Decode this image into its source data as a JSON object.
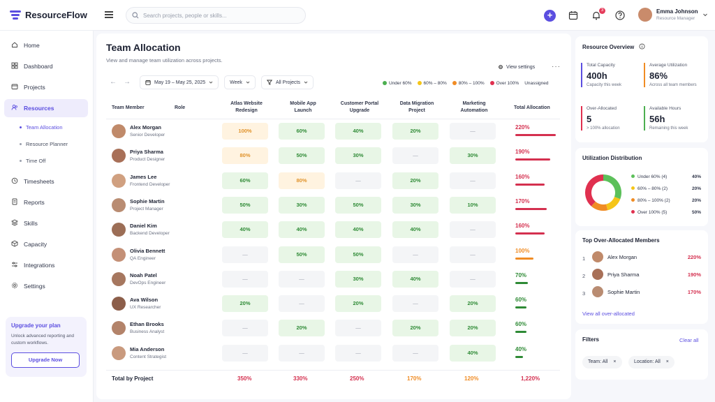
{
  "app": {
    "name": "ResourceFlow"
  },
  "search": {
    "placeholder": "Search projects, people or skills..."
  },
  "user": {
    "name": "Emma Johnson",
    "role": "Resource Manager",
    "notifications": "3"
  },
  "nav": [
    {
      "label": "Home",
      "icon": "home-icon"
    },
    {
      "label": "Dashboard",
      "icon": "dashboard-icon"
    },
    {
      "label": "Projects",
      "icon": "projects-icon"
    },
    {
      "label": "Resources",
      "icon": "resources-icon"
    },
    {
      "label": "Timesheets",
      "icon": "timesheets-icon"
    },
    {
      "label": "Reports",
      "icon": "reports-icon"
    },
    {
      "label": "Skills",
      "icon": "skills-icon"
    },
    {
      "label": "Capacity",
      "icon": "capacity-icon"
    },
    {
      "label": "Integrations",
      "icon": "integrations-icon"
    },
    {
      "label": "Settings",
      "icon": "settings-icon"
    }
  ],
  "subnav": [
    "Team Allocation",
    "Resource Planner",
    "Time Off"
  ],
  "upgrade": {
    "title": "Upgrade your plan",
    "text": "Unlock advanced reporting and custom workflows.",
    "button": "Upgrade Now"
  },
  "page": {
    "title": "Team Allocation",
    "subtitle": "View and manage team utilization across projects."
  },
  "toolbar": {
    "date_range": "May 19 – May 25, 2025",
    "period": "Week",
    "projects": "All Projects",
    "view_settings": "View settings"
  },
  "legend": [
    {
      "label": "Under 60%",
      "color": "#4caf50"
    },
    {
      "label": "60% – 80%",
      "color": "#f5c518"
    },
    {
      "label": "80% – 100%",
      "color": "#f08c24"
    },
    {
      "label": "Over 100%",
      "color": "#e0304f"
    },
    {
      "label": "Unassigned",
      "color": ""
    }
  ],
  "table": {
    "headers": {
      "member": "Team Member",
      "role": "Role",
      "projects": [
        "Atlas Website\nRedesign",
        "Mobile App\nLaunch",
        "Customer Portal\nUpgrade",
        "Data Migration\nProject",
        "Marketing\nAutomation"
      ],
      "total": "Total Allocation"
    },
    "rows": [
      {
        "name": "Alex Morgan",
        "role": "Senior Developer",
        "cells": [
          "100%",
          "60%",
          "40%",
          "20%",
          "—"
        ],
        "total": "220%",
        "total_value": 220
      },
      {
        "name": "Priya Sharma",
        "role": "Product Designer",
        "cells": [
          "80%",
          "50%",
          "30%",
          "—",
          "30%"
        ],
        "total": "190%",
        "total_value": 190
      },
      {
        "name": "James Lee",
        "role": "Frontend Developer",
        "cells": [
          "60%",
          "80%",
          "—",
          "20%",
          "—"
        ],
        "total": "160%",
        "total_value": 160
      },
      {
        "name": "Sophie Martin",
        "role": "Project Manager",
        "cells": [
          "50%",
          "30%",
          "50%",
          "30%",
          "10%"
        ],
        "total": "170%",
        "total_value": 170
      },
      {
        "name": "Daniel Kim",
        "role": "Backend Developer",
        "cells": [
          "40%",
          "40%",
          "40%",
          "40%",
          "—"
        ],
        "total": "160%",
        "total_value": 160
      },
      {
        "name": "Olivia Bennett",
        "role": "QA Engineer",
        "cells": [
          "—",
          "50%",
          "50%",
          "—",
          "—"
        ],
        "total": "100%",
        "total_value": 100
      },
      {
        "name": "Noah Patel",
        "role": "DevOps Engineer",
        "cells": [
          "—",
          "—",
          "30%",
          "40%",
          "—"
        ],
        "total": "70%",
        "total_value": 70
      },
      {
        "name": "Ava Wilson",
        "role": "UX Researcher",
        "cells": [
          "20%",
          "—",
          "20%",
          "—",
          "20%"
        ],
        "total": "60%",
        "total_value": 60
      },
      {
        "name": "Ethan Brooks",
        "role": "Business Analyst",
        "cells": [
          "—",
          "20%",
          "—",
          "20%",
          "20%"
        ],
        "total": "60%",
        "total_value": 60
      },
      {
        "name": "Mia Anderson",
        "role": "Content Strategist",
        "cells": [
          "—",
          "—",
          "—",
          "—",
          "40%"
        ],
        "total": "40%",
        "total_value": 40
      }
    ],
    "footer": {
      "label": "Total by Project",
      "values": [
        "350%",
        "330%",
        "250%",
        "170%",
        "120%",
        "1,220%"
      ]
    }
  },
  "overview": {
    "title": "Resource Overview",
    "stats": [
      {
        "label": "Total Capacity",
        "value": "400h",
        "caption": "Capacity this week",
        "color": "#5b4ee0"
      },
      {
        "label": "Average Utilization",
        "value": "86%",
        "caption": "Across all team members",
        "color": "#f08c24"
      },
      {
        "label": "Over-Allocated",
        "value": "5",
        "caption": "> 100% allocation",
        "color": "#e0304f"
      },
      {
        "label": "Available Hours",
        "value": "56h",
        "caption": "Remaining this week",
        "color": "#4caf50"
      }
    ]
  },
  "distribution": {
    "title": "Utilization Distribution",
    "items": [
      {
        "label": "Under 60% (4)",
        "pct": "40%",
        "value": 40,
        "color": "#5cc05a"
      },
      {
        "label": "60% – 80% (2)",
        "pct": "20%",
        "value": 20,
        "color": "#f5c518"
      },
      {
        "label": "80% – 100% (2)",
        "pct": "20%",
        "value": 20,
        "color": "#f08c24"
      },
      {
        "label": "Over 100% (5)",
        "pct": "50%",
        "value": 50,
        "color": "#e0304f"
      }
    ]
  },
  "top_over": {
    "title": "Top Over-Allocated Members",
    "items": [
      {
        "rank": "1",
        "name": "Alex Morgan",
        "pct": "220%"
      },
      {
        "rank": "2",
        "name": "Priya Sharma",
        "pct": "190%"
      },
      {
        "rank": "3",
        "name": "Sophie Martin",
        "pct": "170%"
      }
    ],
    "link": "View all over-allocated"
  },
  "filters": {
    "title": "Filters",
    "clear": "Clear all",
    "chips": [
      "Team: All",
      "Location: All"
    ]
  }
}
